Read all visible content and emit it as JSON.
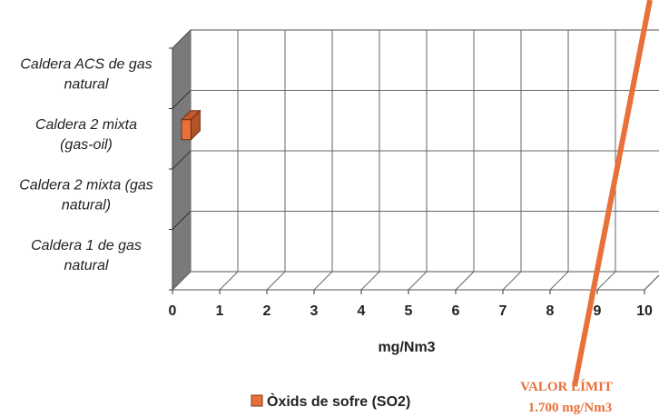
{
  "chart_data": {
    "type": "bar",
    "orientation": "horizontal",
    "three_d": true,
    "categories": [
      [
        "Caldera ACS de gas",
        "natural"
      ],
      [
        "Caldera 2 mixta",
        "(gas-oil)"
      ],
      [
        "Caldera 2 mixta (gas",
        "natural)"
      ],
      [
        "Caldera 1 de gas",
        "natural"
      ]
    ],
    "series": [
      {
        "name": "Òxids de sofre (SO2)",
        "values": [
          0,
          0.2,
          0,
          0
        ],
        "color": "#e8703a"
      }
    ],
    "xlim": [
      0,
      10
    ],
    "xticks": [
      "0",
      "1",
      "2",
      "3",
      "4",
      "5",
      "6",
      "7",
      "8",
      "9",
      "10"
    ],
    "xlabel": "mg/Nm3",
    "ylabel": "",
    "title": "",
    "grid": true,
    "legend_position": "bottom",
    "annotation": {
      "line1": "VALOR LÍMIT",
      "line2": "1.700 mg/Nm3",
      "color": "#e8703a"
    }
  }
}
